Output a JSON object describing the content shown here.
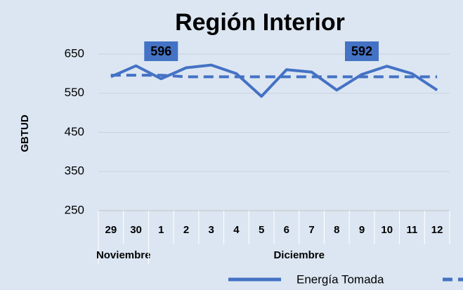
{
  "chart_data": {
    "type": "line",
    "title": "Región Interior",
    "y_label": "GBTUD",
    "categories": [
      "29",
      "30",
      "1",
      "2",
      "3",
      "4",
      "5",
      "6",
      "7",
      "8",
      "9",
      "10",
      "11",
      "12"
    ],
    "groups": [
      {
        "label": "Noviembre",
        "span": 2
      },
      {
        "label": "Diciembre",
        "span": 12
      }
    ],
    "series": [
      {
        "name": "Energía Tomada",
        "color": "#4472c4",
        "dash": false,
        "values": [
          592,
          620,
          587,
          615,
          622,
          600,
          542,
          610,
          604,
          558,
          598,
          619,
          600,
          558
        ]
      },
      {
        "color": "#4472c4",
        "dash": true,
        "values": [
          596,
          596,
          596,
          592,
          592,
          592,
          592,
          592,
          592,
          592,
          592,
          592,
          592,
          592
        ],
        "value_labels": [
          null,
          null,
          "596",
          null,
          null,
          null,
          null,
          null,
          null,
          null,
          "592",
          null,
          null,
          null
        ]
      }
    ],
    "ylim": [
      250,
      650
    ],
    "yticks": [
      250,
      350,
      450,
      550,
      650
    ],
    "grid": true
  }
}
